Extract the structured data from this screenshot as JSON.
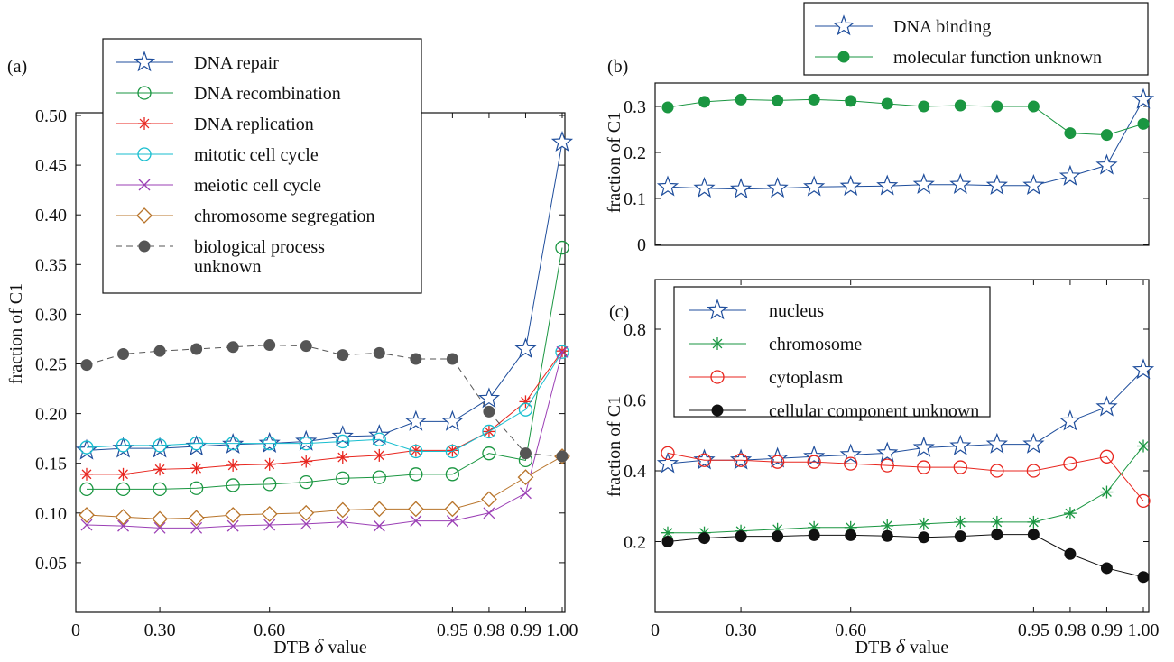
{
  "chart_data": [
    {
      "panel": "a",
      "panel_label": "(a)",
      "type": "line",
      "xlabel": "DTB δ value",
      "ylabel": "fraction of C1",
      "ylim": [
        0,
        0.5
      ],
      "xticks": [
        "0",
        "0.30",
        "0.60",
        "0.95",
        "0.98",
        "0.99",
        "1.00"
      ],
      "yticks": [
        "0.05",
        "0.10",
        "0.15",
        "0.20",
        "0.25",
        "0.30",
        "0.35",
        "0.40",
        "0.45",
        "0.50"
      ],
      "legend_position": "top",
      "series": [
        {
          "name": "DNA repair",
          "color": "#1f4e9c",
          "marker": "star",
          "dash": false,
          "values": [
            0.163,
            0.165,
            0.165,
            0.167,
            0.169,
            0.17,
            0.172,
            0.177,
            0.178,
            0.192,
            0.192,
            0.215,
            0.265,
            0.473
          ]
        },
        {
          "name": "DNA recombination",
          "color": "#1a9641",
          "marker": "circle-open",
          "dash": false,
          "values": [
            0.124,
            0.124,
            0.124,
            0.125,
            0.128,
            0.129,
            0.131,
            0.135,
            0.136,
            0.139,
            0.139,
            0.16,
            0.153,
            0.367
          ]
        },
        {
          "name": "DNA replication",
          "color": "#e8261f",
          "marker": "asterisk",
          "dash": false,
          "values": [
            0.139,
            0.139,
            0.144,
            0.145,
            0.148,
            0.149,
            0.152,
            0.156,
            0.158,
            0.163,
            0.163,
            0.182,
            0.212,
            0.263
          ]
        },
        {
          "name": "mitotic cell cycle",
          "color": "#17becf",
          "marker": "circle-open",
          "dash": false,
          "values": [
            0.166,
            0.168,
            0.168,
            0.17,
            0.17,
            0.17,
            0.17,
            0.172,
            0.174,
            0.162,
            0.162,
            0.182,
            0.204,
            0.262
          ]
        },
        {
          "name": "meiotic cell cycle",
          "color": "#9b3fb5",
          "marker": "x",
          "dash": false,
          "values": [
            0.088,
            0.087,
            0.085,
            0.085,
            0.087,
            0.088,
            0.089,
            0.091,
            0.087,
            0.092,
            0.092,
            0.1,
            0.12,
            0.262
          ]
        },
        {
          "name": "chromosome segregation",
          "color": "#b8742a",
          "marker": "diamond",
          "dash": false,
          "values": [
            0.098,
            0.096,
            0.094,
            0.095,
            0.098,
            0.099,
            0.1,
            0.103,
            0.104,
            0.104,
            0.104,
            0.114,
            0.136,
            0.157
          ]
        },
        {
          "name": "biological process unknown",
          "legend_lines": [
            "biological process",
            "unknown"
          ],
          "color": "#555555",
          "marker": "dot",
          "dash": true,
          "values": [
            0.249,
            0.26,
            0.263,
            0.265,
            0.267,
            0.269,
            0.268,
            0.259,
            0.261,
            0.255,
            0.255,
            0.202,
            0.16,
            0.157
          ]
        }
      ]
    },
    {
      "panel": "b",
      "panel_label": "(b)",
      "type": "line",
      "xlabel": "",
      "ylabel": "fraction of C1",
      "ylim": [
        0,
        0.35
      ],
      "xticks": [],
      "yticks": [
        "0",
        "0.1",
        "0.2",
        "0.3"
      ],
      "legend_position": "top",
      "series": [
        {
          "name": "DNA binding",
          "color": "#1f4e9c",
          "marker": "star",
          "dash": false,
          "values": [
            0.125,
            0.122,
            0.12,
            0.122,
            0.125,
            0.126,
            0.127,
            0.13,
            0.13,
            0.128,
            0.128,
            0.148,
            0.172,
            0.315
          ]
        },
        {
          "name": "molecular function unknown",
          "color": "#1a9641",
          "marker": "dot",
          "dash": false,
          "values": [
            0.298,
            0.31,
            0.315,
            0.313,
            0.315,
            0.312,
            0.306,
            0.3,
            0.302,
            0.3,
            0.3,
            0.242,
            0.238,
            0.262
          ]
        }
      ]
    },
    {
      "panel": "c",
      "panel_label": "(c)",
      "type": "line",
      "xlabel": "DTB δ value",
      "ylabel": "fraction of C1",
      "ylim": [
        0,
        0.9
      ],
      "xticks": [
        "0",
        "0.30",
        "0.60",
        "0.95",
        "0.98",
        "0.99",
        "1.00"
      ],
      "yticks": [
        "0.2",
        "0.4",
        "0.6",
        "0.8"
      ],
      "legend_position": "top-left",
      "series": [
        {
          "name": "nucleus",
          "color": "#1f4e9c",
          "marker": "star",
          "dash": false,
          "values": [
            0.42,
            0.43,
            0.43,
            0.435,
            0.44,
            0.445,
            0.45,
            0.465,
            0.47,
            0.475,
            0.475,
            0.54,
            0.58,
            0.685
          ]
        },
        {
          "name": "chromosome",
          "color": "#1a9641",
          "marker": "asterisk",
          "dash": false,
          "values": [
            0.225,
            0.225,
            0.23,
            0.235,
            0.24,
            0.24,
            0.245,
            0.25,
            0.255,
            0.255,
            0.255,
            0.28,
            0.34,
            0.47
          ]
        },
        {
          "name": "cytoplasm",
          "color": "#e8261f",
          "marker": "circle-open",
          "dash": false,
          "values": [
            0.45,
            0.43,
            0.43,
            0.425,
            0.425,
            0.42,
            0.415,
            0.41,
            0.41,
            0.4,
            0.4,
            0.42,
            0.44,
            0.315
          ]
        },
        {
          "name": "cellular component unknown",
          "color": "#111111",
          "marker": "dot",
          "dash": false,
          "values": [
            0.2,
            0.21,
            0.215,
            0.215,
            0.218,
            0.218,
            0.216,
            0.212,
            0.215,
            0.22,
            0.22,
            0.165,
            0.125,
            0.1
          ]
        }
      ]
    }
  ]
}
